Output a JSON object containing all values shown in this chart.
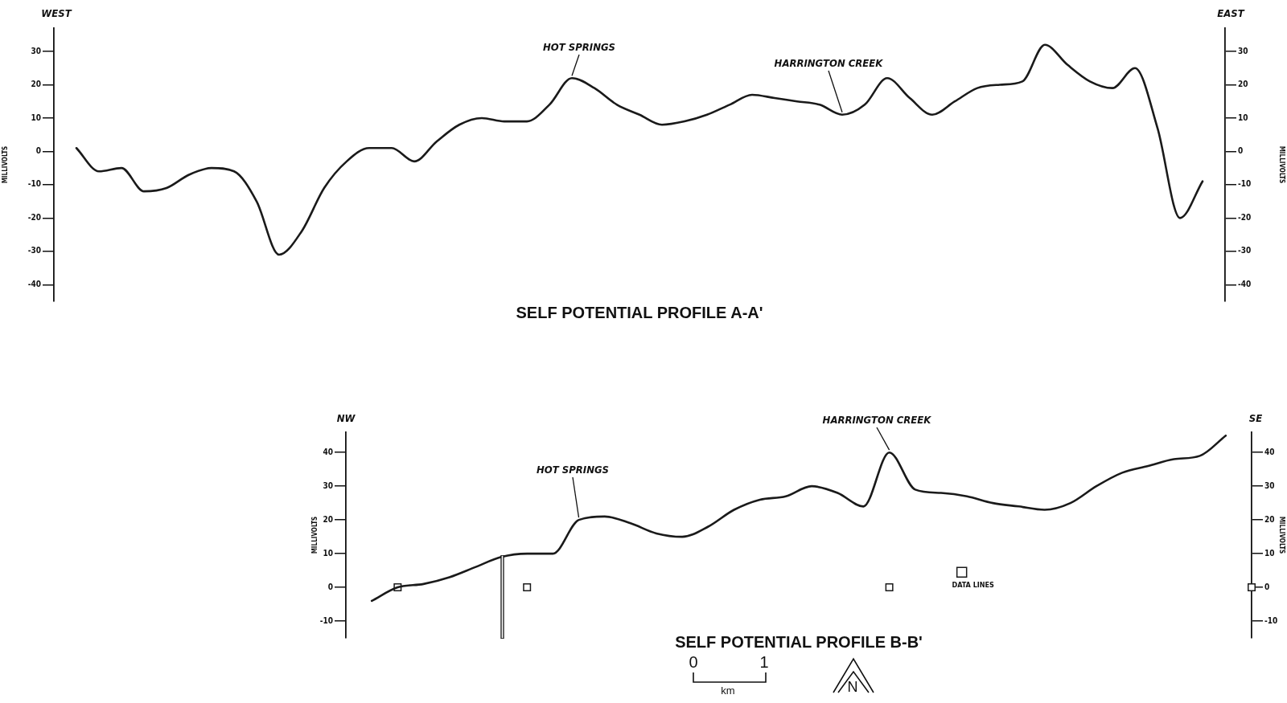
{
  "chart_data": [
    {
      "type": "line",
      "title": "SELF POTENTIAL PROFILE A-A'",
      "ylabel": "MILLIVOLTS",
      "y2label": "MILLIVOLTS",
      "marker": "none",
      "line_style": "solid",
      "categories": [
        null,
        null,
        null,
        null,
        null,
        null,
        null,
        null,
        null,
        null,
        null,
        null,
        null,
        null,
        null,
        null,
        null,
        null,
        null,
        null,
        null,
        null,
        null,
        null,
        null,
        null,
        null,
        null,
        null,
        null,
        null,
        null,
        null,
        null,
        null,
        null,
        null,
        null,
        null,
        null,
        null,
        null,
        null,
        null,
        null,
        null,
        null,
        null,
        null,
        null,
        null,
        null,
        null
      ],
      "series": [
        {
          "color": "#1a1a1a",
          "values": [
            null,
            1,
            -6,
            -5,
            -12,
            -11,
            -7,
            -5,
            -6,
            -15,
            -31,
            -24,
            -11,
            -3,
            1,
            1,
            -3,
            3,
            8,
            10,
            9,
            9,
            14,
            22,
            19,
            14,
            11,
            8,
            9,
            11,
            14,
            17,
            16,
            15,
            14,
            11,
            14,
            22,
            16,
            11,
            15,
            19,
            20,
            21,
            32,
            26,
            21,
            19,
            25,
            7,
            -20,
            -9,
            null
          ]
        }
      ],
      "ylim": [
        -45,
        37
      ],
      "yticks": [
        -40,
        -30,
        -20,
        -10,
        0,
        10,
        20,
        30
      ],
      "y2lim": [
        -45,
        37
      ],
      "y2ticks": [
        -40,
        -30,
        -20,
        -10,
        0,
        10,
        20,
        30
      ],
      "annotations": [
        "WEST",
        "EAST",
        "HOT SPRINGS",
        "HARRINGTON CREEK"
      ]
    },
    {
      "type": "line",
      "title": "SELF POTENTIAL PROFILE B-B'",
      "ylabel": "MILLIVOLTS",
      "y2label": "MILLIVOLTS",
      "marker": "none",
      "line_style": "solid",
      "legend": "bottom",
      "categories": [
        null,
        null,
        null,
        null,
        null,
        null,
        null,
        null,
        null,
        null,
        null,
        null,
        null,
        null,
        null,
        null,
        null,
        null,
        null,
        null,
        null,
        null,
        null,
        null,
        null,
        null,
        null,
        null,
        null,
        null,
        null,
        null,
        null,
        null,
        null,
        null
      ],
      "series": [
        {
          "color": "#1a1a1a",
          "values": [
            null,
            -4,
            0,
            1,
            3,
            6,
            9,
            10,
            10,
            20,
            21,
            19,
            16,
            15,
            18,
            23,
            26,
            27,
            30,
            28,
            24,
            40,
            29,
            28,
            27,
            25,
            24,
            23,
            25,
            30,
            34,
            36,
            38,
            39,
            45,
            null
          ]
        },
        {
          "type": "scatter",
          "name": "DATA LINES",
          "color": "#1a1a1a",
          "marker": "square",
          "values": [
            null,
            null,
            0,
            null,
            null,
            null,
            null,
            0,
            null,
            null,
            null,
            null,
            null,
            null,
            null,
            null,
            null,
            null,
            null,
            null,
            null,
            0,
            null,
            null,
            null,
            null,
            null,
            null,
            null,
            null,
            null,
            null,
            null,
            null,
            null,
            0
          ]
        }
      ],
      "ylim": [
        -15,
        46
      ],
      "yticks": [
        -10,
        0,
        10,
        20,
        30,
        40
      ],
      "y2lim": [
        -15,
        46
      ],
      "y2ticks": [
        -10,
        0,
        10,
        20,
        30,
        40
      ],
      "annotations": [
        "NW",
        "SE",
        "HOT SPRINGS",
        "HARRINGTON CREEK",
        "0",
        "1",
        "km",
        "N"
      ]
    }
  ]
}
